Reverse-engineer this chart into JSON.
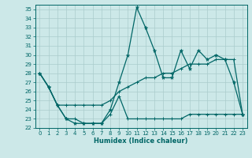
{
  "xlabel": "Humidex (Indice chaleur)",
  "bg_color": "#cce8e8",
  "grid_color": "#aacccc",
  "line_color": "#006666",
  "ylim": [
    22,
    35.5
  ],
  "xlim": [
    -0.5,
    23.5
  ],
  "yticks": [
    22,
    23,
    24,
    25,
    26,
    27,
    28,
    29,
    30,
    31,
    32,
    33,
    34,
    35
  ],
  "xticks": [
    0,
    1,
    2,
    3,
    4,
    5,
    6,
    7,
    8,
    9,
    10,
    11,
    12,
    13,
    14,
    15,
    16,
    17,
    18,
    19,
    20,
    21,
    22,
    23
  ],
  "line1_y": [
    28.0,
    26.5,
    24.5,
    23.0,
    22.5,
    22.5,
    22.5,
    22.5,
    24.0,
    27.0,
    30.0,
    35.2,
    33.0,
    30.5,
    27.5,
    27.5,
    30.5,
    28.5,
    30.5,
    29.5,
    30.0,
    29.5,
    27.0,
    23.5
  ],
  "line2_y": [
    28.0,
    26.5,
    24.5,
    24.5,
    24.5,
    24.5,
    24.5,
    24.5,
    25.0,
    26.0,
    26.5,
    27.0,
    27.5,
    27.5,
    28.0,
    28.0,
    28.5,
    29.0,
    29.0,
    29.0,
    29.5,
    29.5,
    29.5,
    23.5
  ],
  "line3_y": [
    28.0,
    26.5,
    24.5,
    23.0,
    23.0,
    22.5,
    22.5,
    22.5,
    23.5,
    25.5,
    23.0,
    23.0,
    23.0,
    23.0,
    23.0,
    23.0,
    23.0,
    23.5,
    23.5,
    23.5,
    23.5,
    23.5,
    23.5,
    23.5
  ]
}
